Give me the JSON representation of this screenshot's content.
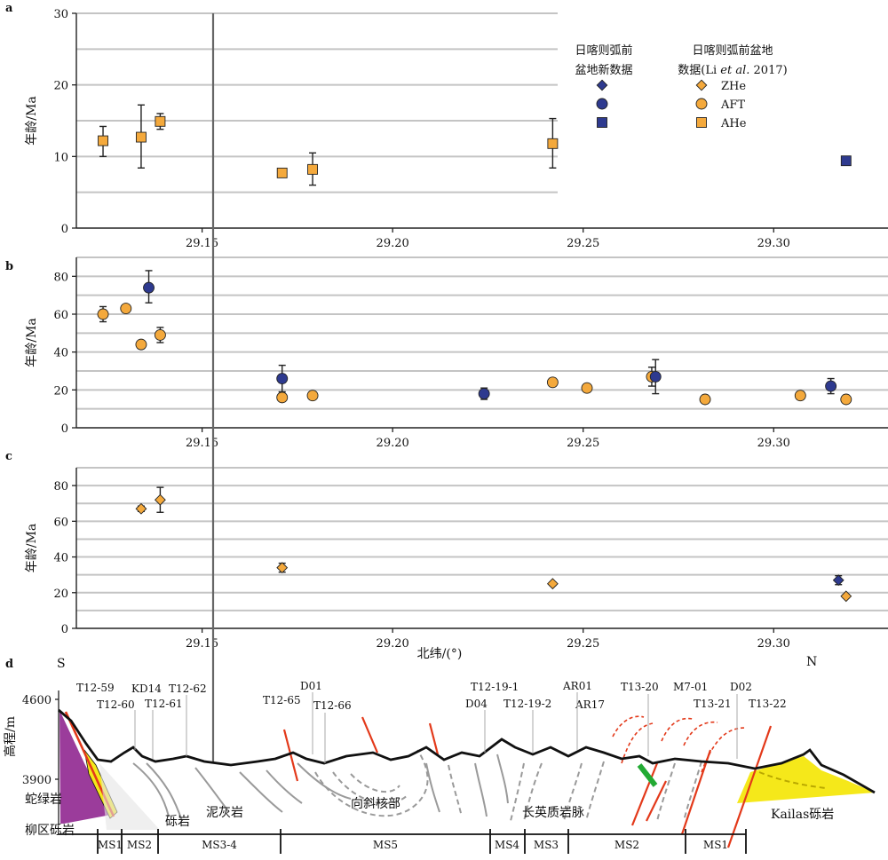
{
  "colors": {
    "new_data": "#2e3a8f",
    "li2017": "#f4a93c",
    "grid": "#c4c4c4",
    "axis": "#222222",
    "divider": "#666666",
    "ophiolite": "#9b3c9b",
    "kailas": "#f5e81a",
    "fault": "#e3391a",
    "dyke": "#22aa33"
  },
  "legend": {
    "new_header_line1": "日喀则弧前",
    "new_header_line2": "盆地新数据",
    "li_header_line1": "日喀则弧前盆地",
    "li_header_line2_pre": "数据(Li ",
    "li_header_line2_italic": "et al.",
    "li_header_line2_post": " 2017)",
    "entries": [
      {
        "label": "ZHe",
        "marker": "diamond"
      },
      {
        "label": "AFT",
        "marker": "circle"
      },
      {
        "label": "AHe",
        "marker": "square"
      }
    ]
  },
  "chart_data": [
    {
      "type": "scatter",
      "panel": "a",
      "ylabel": "年龄/Ma",
      "xlim": [
        29.117,
        29.33
      ],
      "ylim": [
        0,
        30
      ],
      "yticks": [
        0,
        10,
        20,
        30
      ],
      "xticks": [
        29.15,
        29.2,
        29.25,
        29.3
      ],
      "xtick_labels": [
        "29.15",
        "29.20",
        "29.25",
        "29.30"
      ],
      "grid": true,
      "legend_position": "top-right",
      "series": [
        {
          "name": "AHe",
          "source": "li2017",
          "marker": "square",
          "points": [
            {
              "x": 29.124,
              "y": 12.2,
              "err_low": 2.2,
              "err_high": 2.0
            },
            {
              "x": 29.134,
              "y": 12.7,
              "err_low": 4.3,
              "err_high": 4.5
            },
            {
              "x": 29.139,
              "y": 14.9,
              "err_low": 1.1,
              "err_high": 1.1
            },
            {
              "x": 29.171,
              "y": 7.7,
              "err_low": 0.5,
              "err_high": 0.5
            },
            {
              "x": 29.179,
              "y": 8.2,
              "err_low": 2.2,
              "err_high": 2.3
            },
            {
              "x": 29.242,
              "y": 11.8,
              "err_low": 3.4,
              "err_high": 3.5
            }
          ]
        },
        {
          "name": "AHe",
          "source": "new",
          "marker": "square",
          "points": [
            {
              "x": 29.319,
              "y": 9.4,
              "err_low": 0.3,
              "err_high": 0.3
            }
          ]
        }
      ]
    },
    {
      "type": "scatter",
      "panel": "b",
      "ylabel": "年龄/Ma",
      "xlim": [
        29.117,
        29.33
      ],
      "ylim": [
        0,
        90
      ],
      "yticks": [
        0,
        20,
        40,
        60,
        80
      ],
      "xticks": [
        29.15,
        29.2,
        29.25,
        29.3
      ],
      "xtick_labels": [
        "29.15",
        "29.20",
        "29.25",
        "29.30"
      ],
      "grid": true,
      "series": [
        {
          "name": "AFT",
          "source": "li2017",
          "marker": "circle",
          "points": [
            {
              "x": 29.124,
              "y": 60,
              "err_low": 4,
              "err_high": 4
            },
            {
              "x": 29.13,
              "y": 63,
              "err_low": 2,
              "err_high": 2
            },
            {
              "x": 29.134,
              "y": 44,
              "err_low": 2,
              "err_high": 2
            },
            {
              "x": 29.139,
              "y": 49,
              "err_low": 4,
              "err_high": 4
            },
            {
              "x": 29.171,
              "y": 16,
              "err_low": 2,
              "err_high": 2
            },
            {
              "x": 29.179,
              "y": 17,
              "err_low": 2,
              "err_high": 2
            },
            {
              "x": 29.242,
              "y": 24,
              "err_low": 2,
              "err_high": 2
            },
            {
              "x": 29.251,
              "y": 21,
              "err_low": 2,
              "err_high": 2
            },
            {
              "x": 29.268,
              "y": 27,
              "err_low": 5,
              "err_high": 5
            },
            {
              "x": 29.282,
              "y": 15,
              "err_low": 2,
              "err_high": 2
            },
            {
              "x": 29.307,
              "y": 17,
              "err_low": 2,
              "err_high": 2
            },
            {
              "x": 29.319,
              "y": 15,
              "err_low": 2,
              "err_high": 2
            }
          ]
        },
        {
          "name": "AFT",
          "source": "new",
          "marker": "circle",
          "points": [
            {
              "x": 29.136,
              "y": 74,
              "err_low": 8,
              "err_high": 9
            },
            {
              "x": 29.171,
              "y": 26,
              "err_low": 7,
              "err_high": 7
            },
            {
              "x": 29.224,
              "y": 18,
              "err_low": 3,
              "err_high": 3
            },
            {
              "x": 29.269,
              "y": 27,
              "err_low": 9,
              "err_high": 9
            },
            {
              "x": 29.315,
              "y": 22,
              "err_low": 4,
              "err_high": 4
            }
          ]
        }
      ]
    },
    {
      "type": "scatter",
      "panel": "c",
      "ylabel": "年龄/Ma",
      "xlabel": "北纬/(°)",
      "xlim": [
        29.117,
        29.33
      ],
      "ylim": [
        0,
        90
      ],
      "yticks": [
        0,
        20,
        40,
        60,
        80
      ],
      "xticks": [
        29.15,
        29.2,
        29.25,
        29.3
      ],
      "xtick_labels": [
        "29.15",
        "29.20",
        "29.25",
        "29.30"
      ],
      "grid": true,
      "series": [
        {
          "name": "ZHe",
          "source": "li2017",
          "marker": "diamond",
          "points": [
            {
              "x": 29.134,
              "y": 67,
              "err_low": 1.5,
              "err_high": 1.5
            },
            {
              "x": 29.139,
              "y": 72,
              "err_low": 7,
              "err_high": 7
            },
            {
              "x": 29.171,
              "y": 34,
              "err_low": 2.5,
              "err_high": 2.5
            },
            {
              "x": 29.242,
              "y": 25,
              "err_low": 1,
              "err_high": 1
            },
            {
              "x": 29.319,
              "y": 18,
              "err_low": 1,
              "err_high": 1
            }
          ]
        },
        {
          "name": "ZHe",
          "source": "new",
          "marker": "diamond",
          "points": [
            {
              "x": 29.317,
              "y": 27,
              "err_low": 2.5,
              "err_high": 2.5
            }
          ]
        }
      ]
    }
  ],
  "section": {
    "panel_letter": "d",
    "south": "S",
    "north": "N",
    "ylabel": "高程/m",
    "yticks": [
      "4600",
      "3900"
    ],
    "samples": [
      "T12-59",
      "T12-60",
      "KD14",
      "T12-61",
      "T12-62",
      "T12-65",
      "D01",
      "T12-66",
      "T12-19-1",
      "D04",
      "T12-19-2",
      "AR01",
      "AR17",
      "T13-20",
      "M7-01",
      "T13-21",
      "D02",
      "T13-22"
    ],
    "rock_labels": [
      "蛇绿岩",
      "柳区砾岩",
      "砾岩",
      "泥灰岩",
      "向斜核部",
      "长英质岩脉",
      "Kailas砾岩"
    ],
    "units": [
      "MS1",
      "MS2",
      "MS3-4",
      "MS5",
      "MS4",
      "MS3",
      "MS2",
      "MS1"
    ]
  }
}
